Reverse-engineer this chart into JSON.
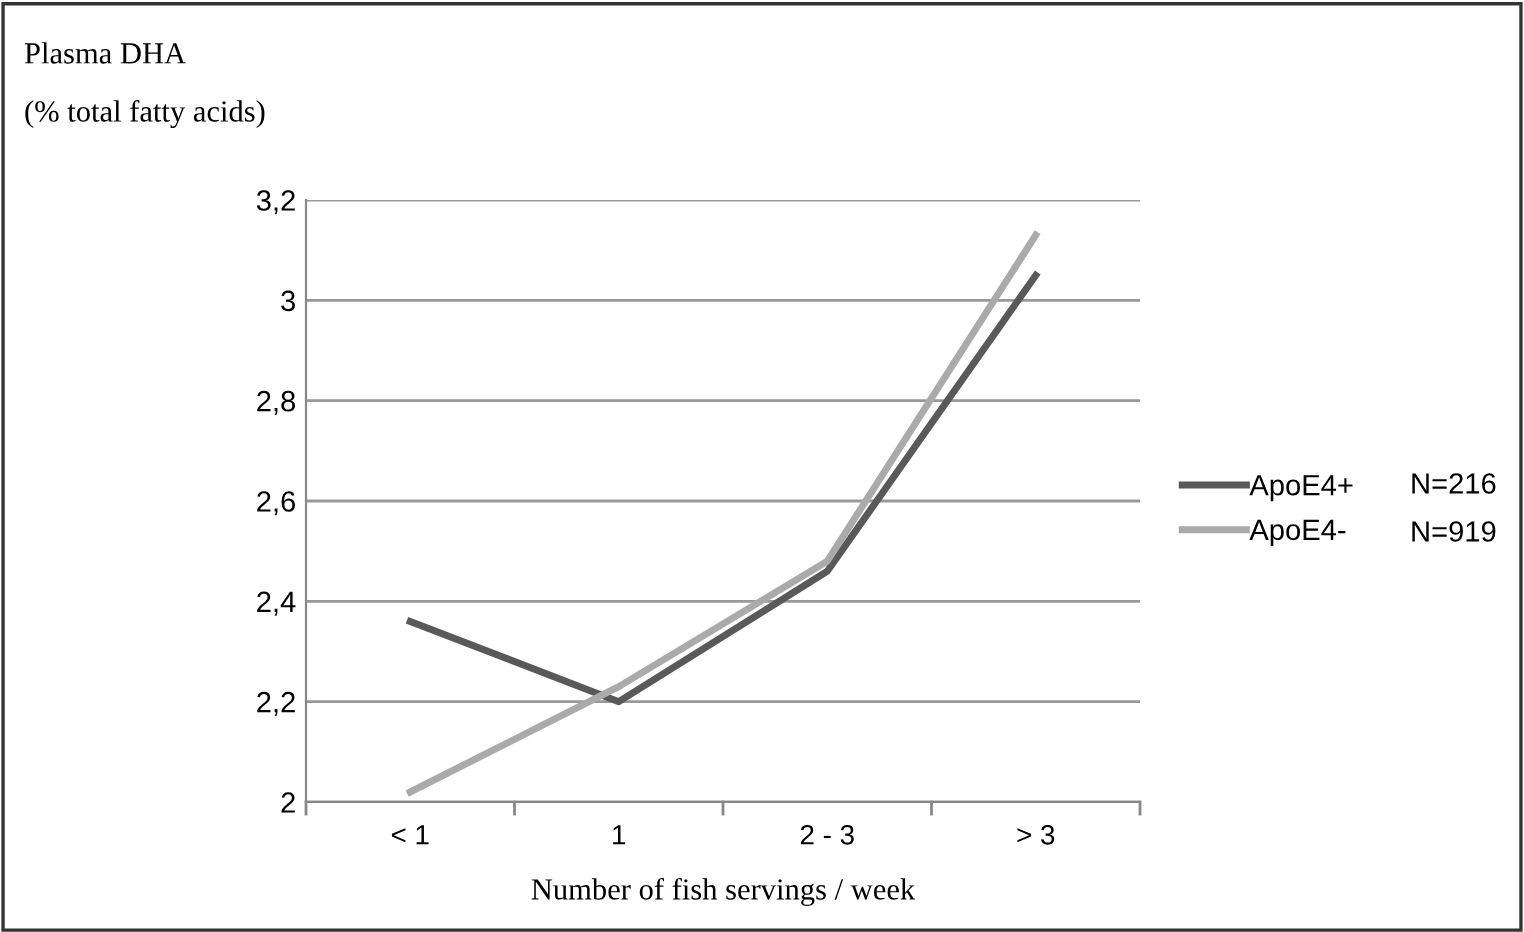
{
  "chart_data": {
    "type": "line",
    "title": "Plasma DHA",
    "subtitle": "(% total fatty acids)",
    "xlabel": "Number of fish servings / week",
    "categories": [
      "< 1",
      "1",
      "2 - 3",
      "> 3"
    ],
    "series": [
      {
        "name": "ApoE4+",
        "color": "#595959",
        "values": [
          2.36,
          2.2,
          2.46,
          3.05
        ]
      },
      {
        "name": "ApoE4-",
        "color": "#aaaaaa",
        "values": [
          2.02,
          2.23,
          2.48,
          3.13
        ]
      }
    ],
    "ylim": [
      2,
      3.2
    ],
    "yticks": [
      {
        "value": 2,
        "label": "2"
      },
      {
        "value": 2.2,
        "label": "2,2"
      },
      {
        "value": 2.4,
        "label": "2,4"
      },
      {
        "value": 2.6,
        "label": "2,6"
      },
      {
        "value": 2.8,
        "label": "2,8"
      },
      {
        "value": 3,
        "label": "3"
      },
      {
        "value": 3.2,
        "label": "3,2"
      }
    ],
    "grid": "y",
    "legend": "right",
    "marker": "none",
    "line_style": "solid",
    "annotations": [
      "N=216",
      "N=919"
    ]
  }
}
